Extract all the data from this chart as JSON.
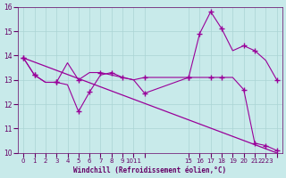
{
  "title": "Windchill (Refroidissement éolien,°C)",
  "bg_color": "#c8eaea",
  "grid_color": "#aad4d4",
  "line_color": "#990099",
  "xlim": [
    0,
    23
  ],
  "ylim": [
    10,
    16
  ],
  "yticks": [
    10,
    11,
    12,
    13,
    14,
    15,
    16
  ],
  "series1_x": [
    0,
    1,
    2,
    3,
    4,
    5,
    6,
    7,
    8,
    9,
    10,
    11,
    15,
    16,
    17,
    18,
    19,
    20,
    21,
    22,
    23
  ],
  "series1_y": [
    13.9,
    13.2,
    12.9,
    12.9,
    12.8,
    11.7,
    12.5,
    13.2,
    13.3,
    13.1,
    13.0,
    12.45,
    13.1,
    14.9,
    15.8,
    15.1,
    14.2,
    14.4,
    14.2,
    13.8,
    13.0
  ],
  "series2_x": [
    0,
    1,
    2,
    3,
    4,
    5,
    6,
    7,
    8,
    9,
    10,
    11,
    15,
    16,
    17,
    18,
    19,
    20,
    21,
    22,
    23
  ],
  "series2_y": [
    13.9,
    13.2,
    12.9,
    12.9,
    13.7,
    13.0,
    13.3,
    13.3,
    13.2,
    13.1,
    13.0,
    13.1,
    13.1,
    13.1,
    13.1,
    13.1,
    13.1,
    12.6,
    10.4,
    10.3,
    10.1
  ],
  "trend_x": [
    0,
    23
  ],
  "trend_y": [
    13.9,
    10.0
  ],
  "marker_series1_x": [
    0,
    1,
    3,
    5,
    6,
    8,
    11,
    15,
    16,
    17,
    18,
    20,
    21,
    23
  ],
  "marker_series1_y": [
    13.9,
    13.2,
    12.9,
    11.7,
    12.5,
    13.3,
    12.45,
    13.1,
    14.9,
    15.8,
    15.1,
    14.4,
    14.2,
    13.0
  ],
  "marker_series2_x": [
    0,
    1,
    3,
    5,
    7,
    9,
    11,
    15,
    17,
    18,
    20,
    21,
    22,
    23
  ],
  "marker_series2_y": [
    13.9,
    13.2,
    12.9,
    13.0,
    13.3,
    13.1,
    13.1,
    13.1,
    13.1,
    13.1,
    12.6,
    10.4,
    10.3,
    10.1
  ],
  "xtick_pos": [
    0,
    1,
    2,
    3,
    4,
    5,
    6,
    7,
    8,
    9,
    10,
    11,
    15,
    16,
    17,
    18,
    19,
    20,
    21,
    22,
    23
  ],
  "xtick_lab": [
    "0",
    "1",
    "2",
    "3",
    "4",
    "5",
    "6",
    "7",
    "8",
    "9",
    "1011",
    "",
    "15",
    "16",
    "17",
    "18",
    "19",
    "20",
    "21",
    "2223",
    ""
  ]
}
